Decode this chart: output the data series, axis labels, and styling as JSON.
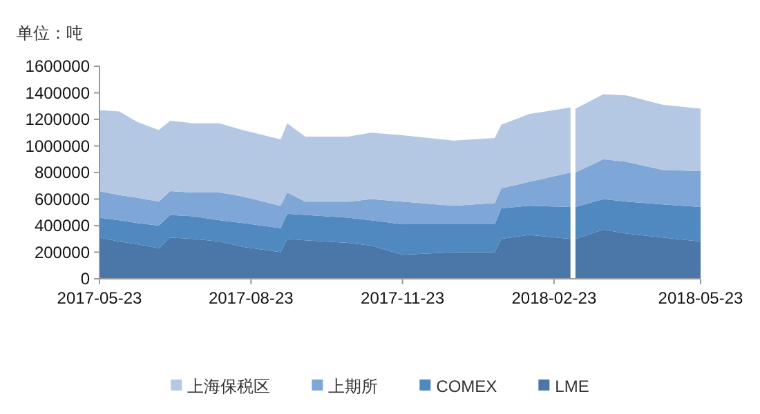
{
  "chart_data": {
    "type": "area",
    "stacked": true,
    "ylabel": "单位：吨",
    "legend": "bottom",
    "x": [
      "2017-05-23",
      "2017-06-04",
      "2017-06-15",
      "2017-06-28",
      "2017-07-05",
      "2017-07-19",
      "2017-08-04",
      "2017-08-18",
      "2017-09-10",
      "2017-09-14",
      "2017-09-25",
      "2017-10-21",
      "2017-11-04",
      "2017-11-23",
      "2017-12-24",
      "2018-01-18",
      "2018-01-22",
      "2018-02-08",
      "2018-03-05",
      "2018-03-06",
      "2018-03-08",
      "2018-03-25",
      "2018-04-08",
      "2018-04-30",
      "2018-05-23"
    ],
    "series": [
      {
        "name": "LME",
        "color": "#4a76a8",
        "values": [
          310000,
          280000,
          260000,
          230000,
          310000,
          300000,
          280000,
          240000,
          200000,
          300000,
          290000,
          270000,
          250000,
          180000,
          200000,
          200000,
          300000,
          330000,
          300000,
          null,
          300000,
          370000,
          340000,
          310000,
          280000
        ]
      },
      {
        "name": "COMEX",
        "color": "#5088c0",
        "values": [
          150000,
          160000,
          160000,
          170000,
          170000,
          170000,
          160000,
          180000,
          180000,
          190000,
          190000,
          190000,
          190000,
          230000,
          210000,
          210000,
          230000,
          220000,
          240000,
          null,
          240000,
          230000,
          240000,
          250000,
          260000
        ]
      },
      {
        "name": "上期所",
        "color": "#7ea6d6",
        "values": [
          200000,
          190000,
          190000,
          180000,
          180000,
          180000,
          210000,
          200000,
          170000,
          160000,
          100000,
          120000,
          160000,
          170000,
          140000,
          160000,
          150000,
          180000,
          260000,
          null,
          260000,
          300000,
          300000,
          260000,
          270000
        ]
      },
      {
        "name": "上海保税区",
        "color": "#b4c8e4",
        "values": [
          610000,
          630000,
          570000,
          540000,
          530000,
          520000,
          520000,
          500000,
          500000,
          520000,
          490000,
          490000,
          500000,
          500000,
          490000,
          490000,
          480000,
          510000,
          490000,
          null,
          480000,
          490000,
          500000,
          490000,
          470000
        ]
      }
    ],
    "xlim": [
      "2017-05-23",
      "2018-05-23"
    ],
    "xticks": [
      "2017-05-23",
      "2017-08-23",
      "2017-11-23",
      "2018-02-23",
      "2018-05-23"
    ],
    "ylim": [
      0,
      1600000
    ],
    "yticks": [
      0,
      200000,
      400000,
      600000,
      800000,
      1000000,
      1200000,
      1400000,
      1600000
    ]
  }
}
